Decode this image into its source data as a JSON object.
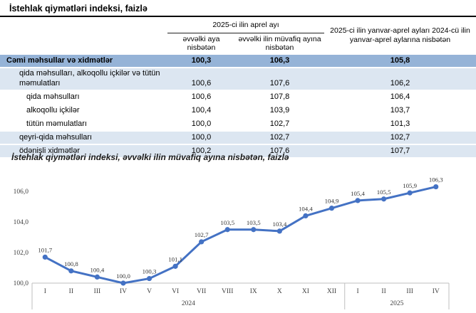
{
  "page": {
    "table_title": "İstehlak qiymətləri indeksi, faizlə",
    "chart_title": "İstehlak qiymətləri indeksi, əvvəlki ilin müvafiq ayına nisbətən, faizlə"
  },
  "table": {
    "col_group_header": "2025-ci ilin aprel ayı",
    "subheaders": [
      "əvvəlki aya nisbətən",
      "əvvəlki ilin müvafiq ayına nisbətən"
    ],
    "right_header": "2025-ci ilin yanvar-aprel ayları 2024-cü ilin yanvar-aprel aylarına nisbətən",
    "rows": [
      {
        "label": "Cəmi məhsullar və xidmətlər",
        "values": [
          "100,3",
          "106,3",
          "105,8"
        ],
        "style": "total"
      },
      {
        "label": "qida məhsulları, alkoqollu içkilər və tütün məmulatları",
        "values": [
          "100,6",
          "107,6",
          "106,2"
        ],
        "style": "group"
      },
      {
        "label": "qida məhsulları",
        "values": [
          "100,6",
          "107,8",
          "106,4"
        ],
        "style": "sub"
      },
      {
        "label": "alkoqollu içkilər",
        "values": [
          "100,4",
          "103,9",
          "103,7"
        ],
        "style": "sub"
      },
      {
        "label": "tütün məmulatları",
        "values": [
          "100,0",
          "102,7",
          "101,3"
        ],
        "style": "sub"
      },
      {
        "label": "qeyri-qida məhsulları",
        "values": [
          "100,0",
          "102,7",
          "102,7"
        ],
        "style": "group"
      },
      {
        "label": "ödənişli xidmətlər",
        "values": [
          "100,2",
          "107,6",
          "107,7"
        ],
        "style": "group"
      }
    ]
  },
  "chart_data": {
    "type": "line",
    "title": "İstehlak qiymətləri indeksi, əvvəlki ilin müvafiq ayına nisbətən, faizlə",
    "categories": [
      "I",
      "II",
      "III",
      "IV",
      "V",
      "VI",
      "VII",
      "VIII",
      "IX",
      "X",
      "XI",
      "XII",
      "I",
      "II",
      "III",
      "IV"
    ],
    "year_groups": [
      {
        "label": "2024",
        "span": 12
      },
      {
        "label": "2025",
        "span": 4
      }
    ],
    "values": [
      101.7,
      100.8,
      100.4,
      100.0,
      100.3,
      101.1,
      102.7,
      103.5,
      103.5,
      103.4,
      104.4,
      104.9,
      105.4,
      105.5,
      105.9,
      106.3
    ],
    "point_labels": [
      "101,7",
      "100,8",
      "100,4",
      "100,0",
      "100,3",
      "101,1",
      "102,7",
      "103,5",
      "103,5",
      "103,4",
      "104,4",
      "104,9",
      "105,4",
      "105,5",
      "105,9",
      "106,3"
    ],
    "y_ticks": [
      "100,0",
      "102,0",
      "104,0",
      "106,0"
    ],
    "ylim": [
      100.0,
      106.8
    ],
    "xlabel": "",
    "ylabel": "",
    "grid": false,
    "legend": "none"
  },
  "colors": {
    "line": "#4472C4",
    "total_row_bg": "#95B3D7",
    "band_row_bg": "#DCE6F1",
    "row_top_border": "#17375E",
    "axis": "#BFBFBF"
  }
}
